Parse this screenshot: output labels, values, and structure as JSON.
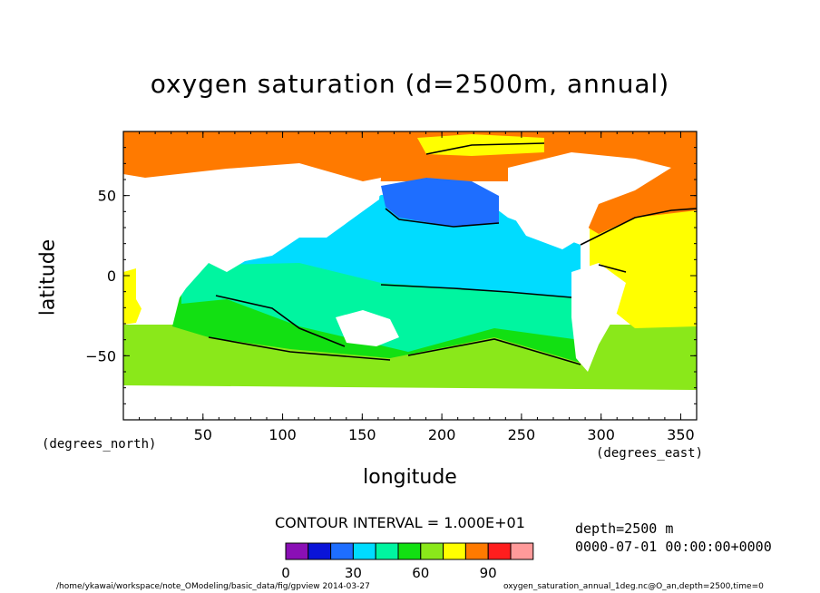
{
  "title": "oxygen saturation (d=2500m, annual)",
  "axes": {
    "xlabel": "longitude",
    "ylabel": "latitude",
    "x_unit": "(degrees_east)",
    "y_unit": "(degrees_north)",
    "x_ticks": [
      "50",
      "100",
      "150",
      "200",
      "250",
      "300",
      "350"
    ],
    "y_ticks": [
      "50",
      "0",
      "−50"
    ],
    "xlim": [
      0,
      360
    ],
    "ylim": [
      -90,
      90
    ]
  },
  "contour_interval": "CONTOUR INTERVAL = 1.000E+01",
  "metadata": {
    "depth": "depth=2500 m",
    "time": "0000-07-01 00:00:00+0000"
  },
  "colorbar": {
    "labels": [
      "0",
      "30",
      "60",
      "90"
    ],
    "colors": [
      "#8a0fb5",
      "#0a14d8",
      "#1e6eff",
      "#00dcff",
      "#00f5a0",
      "#12e012",
      "#8ae81a",
      "#ffff00",
      "#ff7a00",
      "#ff1e1e",
      "#ff9a9a"
    ]
  },
  "footer": {
    "path": "/home/ykawai/workspace/note_OModeling/basic_data/fig/gpview   2014-03-27",
    "file": "oxygen_saturation_annual_1deg.nc@O_an,depth=2500,time=0"
  },
  "colors": {
    "land": "#ffffff",
    "contour": "#000000"
  }
}
